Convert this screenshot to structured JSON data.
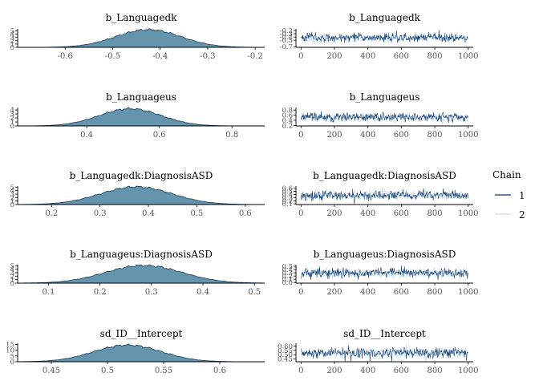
{
  "legend": {
    "title": "Chain",
    "placement": "right",
    "entries": [
      {
        "label": "1",
        "color": "#0b3a6e"
      },
      {
        "label": "2",
        "color": "#c6dbef"
      }
    ]
  },
  "colors": {
    "density_fill": "#6495ad",
    "density_line": "#0f3d5c",
    "chain1": "#0b3a6e",
    "chain2": "#c6dbef"
  },
  "chart_data": [
    {
      "type": "area",
      "title": "b_Languagedk",
      "x_ticks": [
        -0.6,
        -0.5,
        -0.4,
        -0.3,
        -0.2
      ],
      "xlim": [
        -0.7,
        -0.18
      ],
      "y_ticks": [
        0,
        1,
        2,
        3,
        4,
        5
      ],
      "ylim": [
        0,
        5.6
      ],
      "density": {
        "mean": -0.425,
        "sd": 0.068,
        "peak": 5.4
      }
    },
    {
      "type": "line",
      "title": "b_Languagedk",
      "x_ticks": [
        0,
        200,
        400,
        600,
        800,
        1000
      ],
      "xlim": [
        -30,
        1030
      ],
      "y_ticks": [
        -0.7,
        -0.5,
        -0.4,
        -0.3,
        -0.2
      ],
      "y_tick_labels": [
        "-0.7",
        "-0.5",
        "-0.4",
        "-0.3",
        "-0.2"
      ],
      "ylim": [
        -0.72,
        -0.15
      ],
      "trace": {
        "iterations": 1000,
        "mean": -0.425,
        "sd": 0.068
      }
    },
    {
      "type": "area",
      "title": "b_Languageus",
      "x_ticks": [
        0.4,
        0.6,
        0.8
      ],
      "xlim": [
        0.21,
        0.89
      ],
      "y_ticks": [
        0,
        1,
        2,
        3,
        4
      ],
      "ylim": [
        0,
        4.6
      ],
      "density": {
        "mean": 0.52,
        "sd": 0.085,
        "peak": 4.3
      }
    },
    {
      "type": "line",
      "title": "b_Languageus",
      "x_ticks": [
        0,
        200,
        400,
        600,
        800,
        1000
      ],
      "xlim": [
        -30,
        1030
      ],
      "y_ticks": [
        0.2,
        0.4,
        0.6,
        0.8
      ],
      "y_tick_labels": [
        "0.2",
        "0.4",
        "0.6",
        "0.8"
      ],
      "ylim": [
        0.18,
        0.9
      ],
      "trace": {
        "iterations": 1000,
        "mean": 0.52,
        "sd": 0.085
      }
    },
    {
      "type": "area",
      "title": "b_Languagedk:DiagnosisASD",
      "x_ticks": [
        0.2,
        0.3,
        0.4,
        0.5,
        0.6
      ],
      "xlim": [
        0.13,
        0.64
      ],
      "y_ticks": [
        0,
        1,
        2,
        3,
        4,
        5
      ],
      "ylim": [
        0,
        5.3
      ],
      "density": {
        "mean": 0.375,
        "sd": 0.074,
        "peak": 5.1
      }
    },
    {
      "type": "line",
      "title": "b_Languagedk:DiagnosisASD",
      "x_ticks": [
        0,
        200,
        400,
        600,
        800,
        1000
      ],
      "xlim": [
        -30,
        1030
      ],
      "y_ticks": [
        0.1,
        0.2,
        0.3,
        0.4,
        0.5,
        0.6
      ],
      "y_tick_labels": [
        "0.1",
        "0.2",
        "0.3",
        "0.4",
        "0.5",
        "0.6"
      ],
      "ylim": [
        0.08,
        0.67
      ],
      "trace": {
        "iterations": 1000,
        "mean": 0.375,
        "sd": 0.074
      }
    },
    {
      "type": "area",
      "title": "b_Languageus:DiagnosisASD",
      "x_ticks": [
        0.1,
        0.2,
        0.3,
        0.4,
        0.5
      ],
      "xlim": [
        0.04,
        0.52
      ],
      "y_ticks": [
        0,
        1,
        2,
        3,
        4,
        5
      ],
      "ylim": [
        0,
        5.3
      ],
      "density": {
        "mean": 0.285,
        "sd": 0.074,
        "peak": 5.1
      }
    },
    {
      "type": "line",
      "title": "b_Languageus:DiagnosisASD",
      "x_ticks": [
        0,
        200,
        400,
        600,
        800,
        1000
      ],
      "xlim": [
        -30,
        1030
      ],
      "y_ticks": [
        0.0,
        0.1,
        0.2,
        0.3,
        0.4,
        0.5
      ],
      "y_tick_labels": [
        "0.0",
        "0.1",
        "0.2",
        "0.3",
        "0.4",
        "0.5"
      ],
      "ylim": [
        -0.02,
        0.55
      ],
      "trace": {
        "iterations": 1000,
        "mean": 0.285,
        "sd": 0.074
      }
    },
    {
      "type": "area",
      "title": "sd_ID__Intercept",
      "x_ticks": [
        0.45,
        0.5,
        0.55,
        0.6
      ],
      "xlim": [
        0.42,
        0.64
      ],
      "y_ticks": [
        0,
        5,
        10,
        15
      ],
      "ylim": [
        0,
        16
      ],
      "density": {
        "mean": 0.518,
        "sd": 0.03,
        "peak": 14.5
      }
    },
    {
      "type": "line",
      "title": "sd_ID__Intercept",
      "x_ticks": [
        0,
        200,
        400,
        600,
        800,
        1000
      ],
      "xlim": [
        -30,
        1030
      ],
      "y_ticks": [
        0.45,
        0.5,
        0.55,
        0.6
      ],
      "y_tick_labels": [
        "0.45",
        "0.50",
        "0.55",
        "0.60"
      ],
      "ylim": [
        0.42,
        0.63
      ],
      "trace": {
        "iterations": 1000,
        "mean": 0.518,
        "sd": 0.03
      }
    }
  ]
}
